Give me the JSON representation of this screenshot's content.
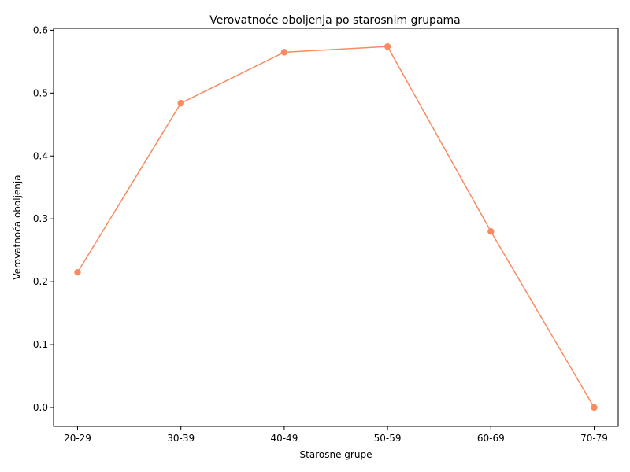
{
  "chart_data": {
    "type": "line",
    "title": "Verovatnoće oboljenja po starosnim grupama",
    "xlabel": "Starosne grupe",
    "ylabel": "Verovatnoća oboljenja",
    "categories": [
      "20-29",
      "30-39",
      "40-49",
      "50-59",
      "60-69",
      "70-79"
    ],
    "series": [
      {
        "values": [
          0.215,
          0.484,
          0.565,
          0.574,
          0.28,
          0.0
        ]
      }
    ],
    "ylim": [
      -0.03,
      0.603
    ],
    "yticks": [
      "0.0",
      "0.1",
      "0.2",
      "0.3",
      "0.4",
      "0.5",
      "0.6"
    ],
    "grid": false,
    "color": "#fa8a5f"
  }
}
